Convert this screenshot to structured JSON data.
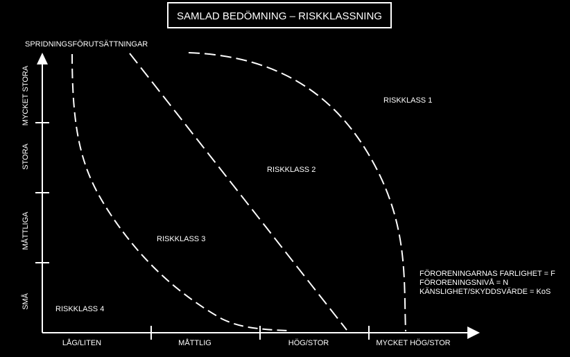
{
  "title": "SAMLAD BEDÖMNING – RISKKLASSNING",
  "y_axis": {
    "label": "SPRIDNINGSFÖRUTSÄTTNINGAR",
    "categories": [
      "SMÅ",
      "MÅTTLIGA",
      "STORA",
      "MYCKET STORA"
    ]
  },
  "x_axis": {
    "categories": [
      "LÅG/LITEN",
      "MÅTTLIG",
      "HÖG/STOR",
      "MYCKET HÖG/STOR"
    ]
  },
  "regions": {
    "class1": "RISKKLASS 1",
    "class2": "RISKKLASS 2",
    "class3": "RISKKLASS 3",
    "class4": "RISKKLASS 4"
  },
  "legend": {
    "line1": "FÖRORENINGARNAS FARLIGHET = F",
    "line2": "FÖRORENINGSNIVÅ = N",
    "line3": "KÄNSLIGHET/SKYDDSVÄRDE = KoS"
  },
  "colors": {
    "background": "#000000",
    "foreground": "#ffffff"
  }
}
